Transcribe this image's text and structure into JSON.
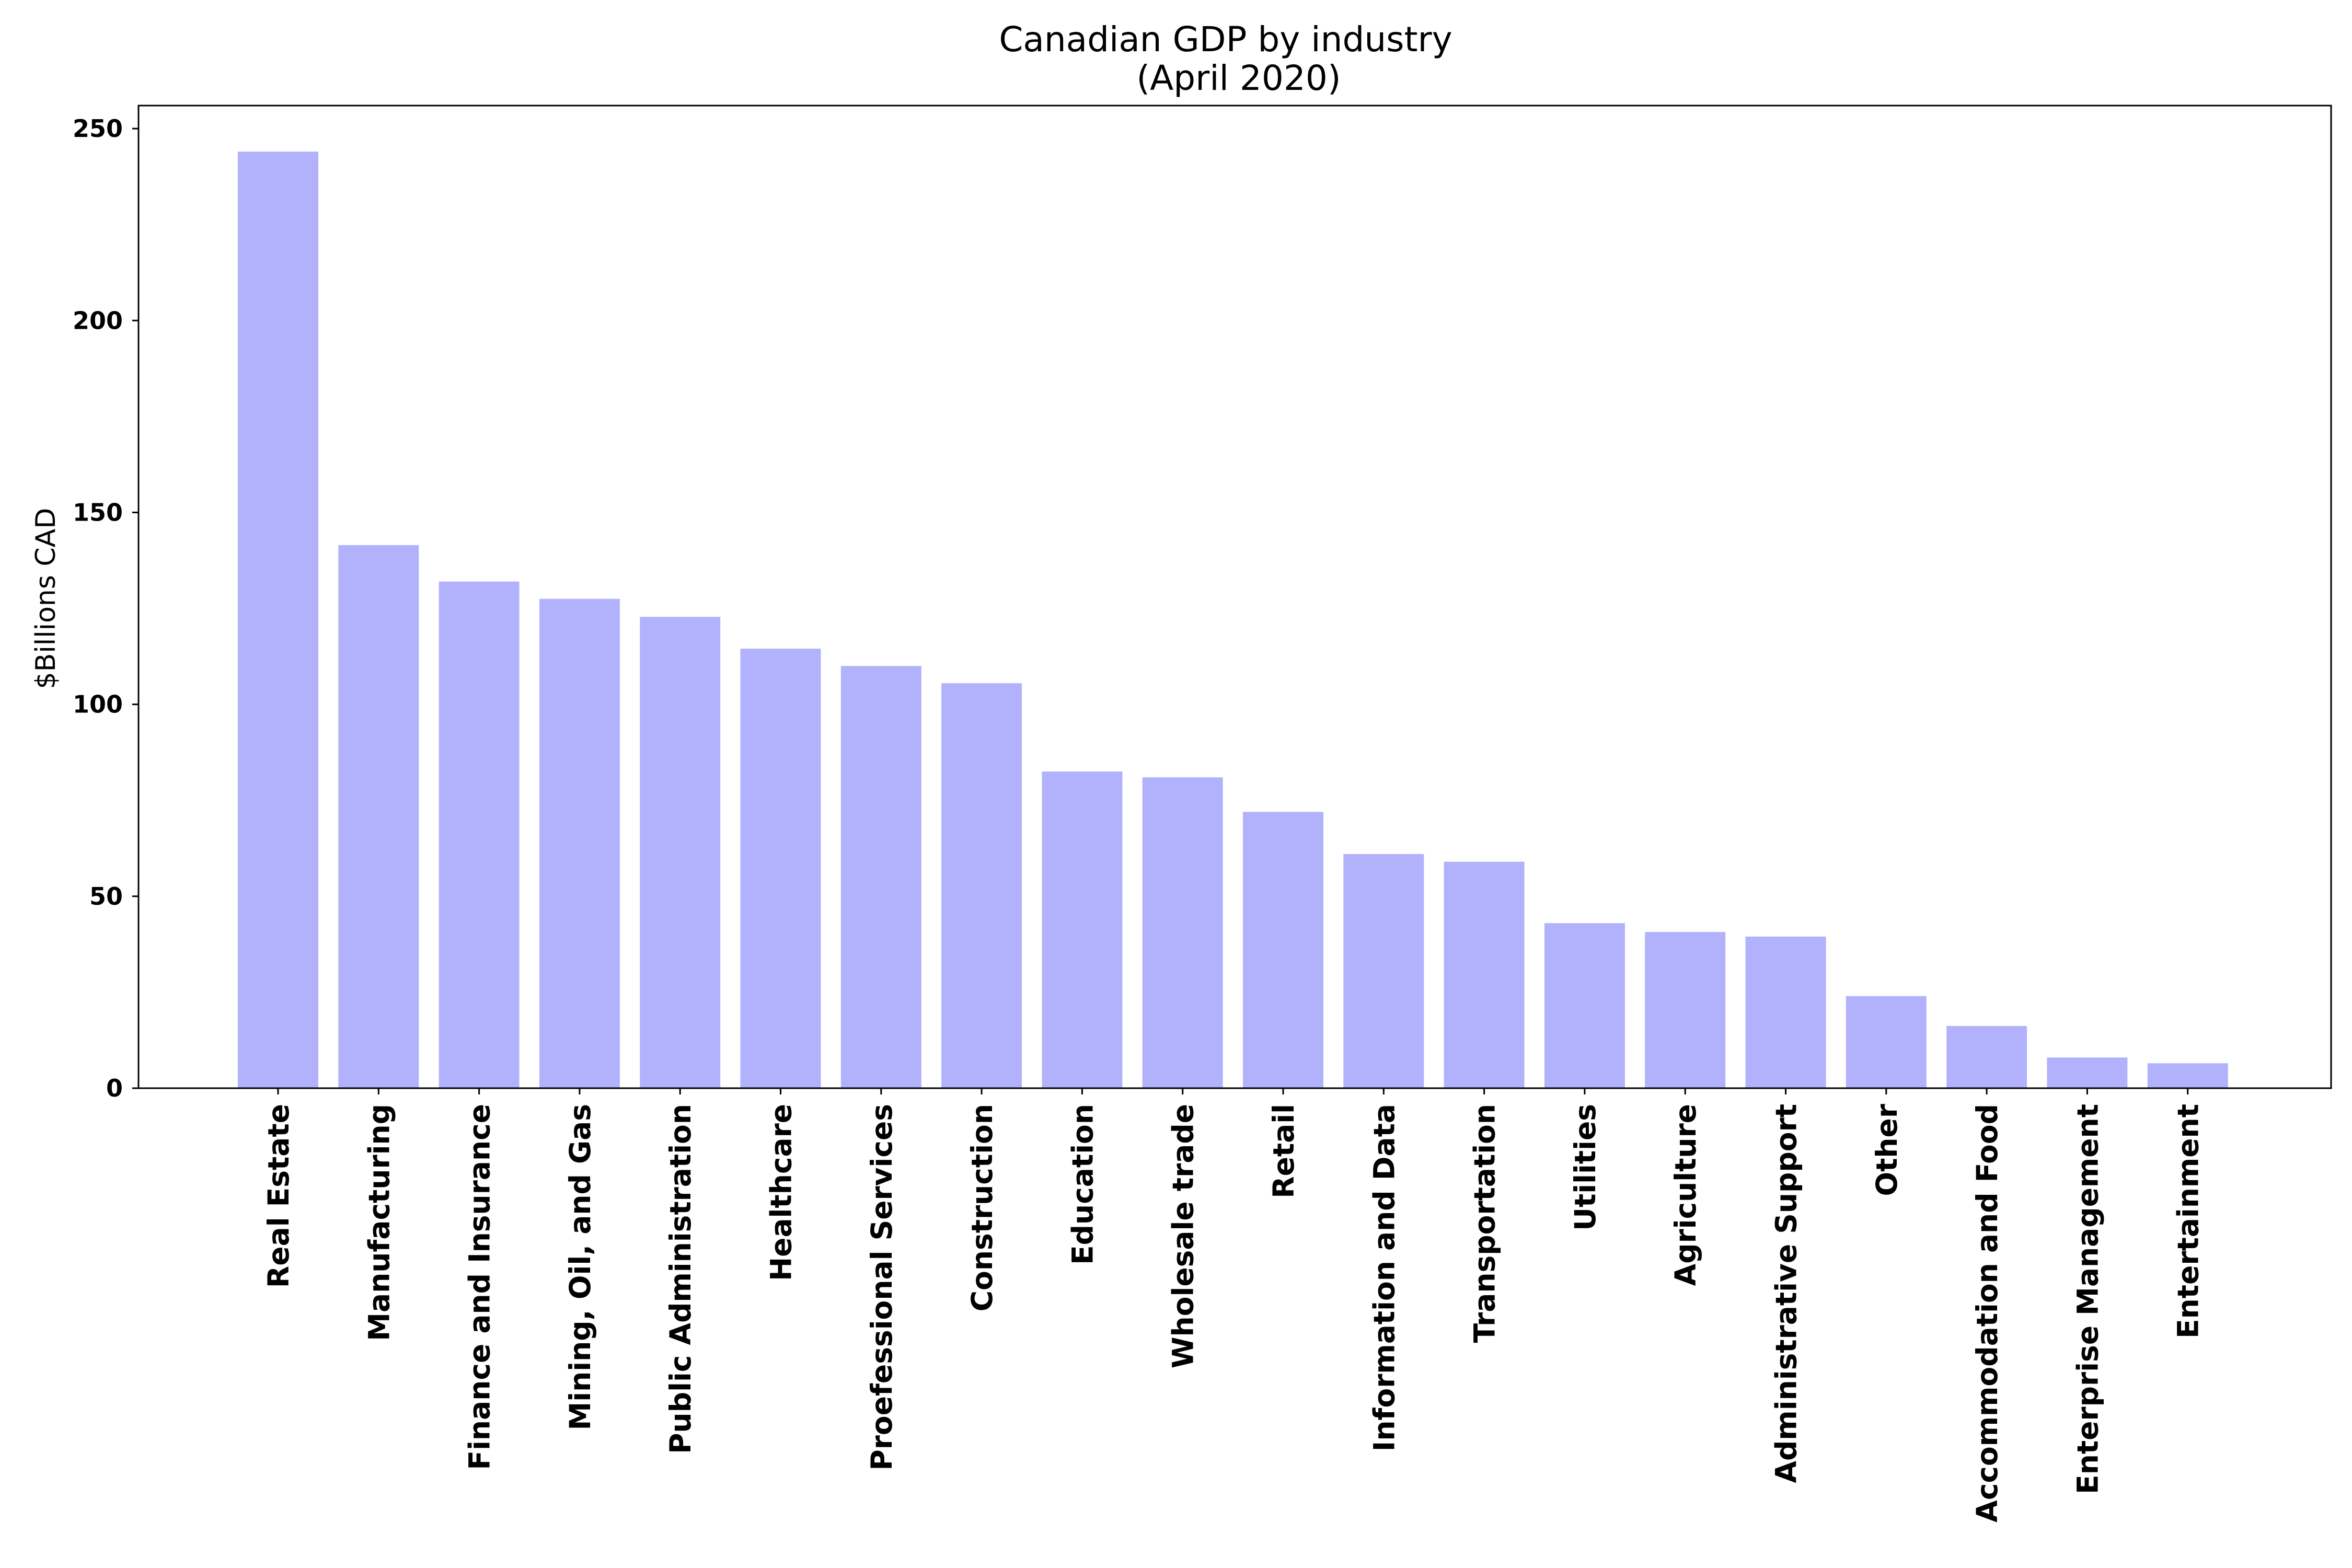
{
  "chart_data": {
    "type": "bar",
    "title": "Canadian GDP by industry",
    "subtitle": "(April 2020)",
    "xlabel": "",
    "ylabel": "$Billions CAD",
    "ylim": [
      0,
      256
    ],
    "yticks": [
      0,
      50,
      100,
      150,
      200,
      250
    ],
    "grid": false,
    "bar_color": "#b2b2fc",
    "categories": [
      "Real Estate",
      "Manufacturing",
      "Finance and Insurance",
      "Mining, Oil, and Gas",
      "Public Administration",
      "Healthcare",
      "Proefessional Services",
      "Construction",
      "Education",
      "Wholesale trade",
      "Retail",
      "Information and Data",
      "Transportation",
      "Utilities",
      "Agriculture",
      "Administrative Support",
      "Other",
      "Accommodation and Food",
      "Enterprise Management",
      "Entertainment"
    ],
    "values": [
      244,
      141.5,
      132,
      127.5,
      122.8,
      114.5,
      110,
      105.5,
      82.5,
      81,
      72,
      61,
      59,
      43,
      40.7,
      39.5,
      24,
      16.2,
      8,
      6.5
    ]
  }
}
